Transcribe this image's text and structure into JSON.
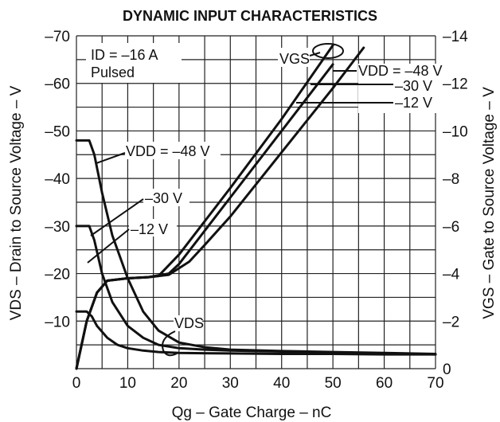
{
  "chart_data": {
    "type": "line",
    "title": "DYNAMIC INPUT CHARACTERISTICS",
    "xlabel": "Qg – Gate Charge – nC",
    "ylabel_left": "VDS – Drain to Source Voltage – V",
    "ylabel_right": "VGS – Gate to Source Voltage – V",
    "xlim": [
      0,
      70
    ],
    "ylim_left": [
      0,
      -70
    ],
    "ylim_right": [
      0,
      -14
    ],
    "grid": true,
    "x_ticks": [
      "0",
      "10",
      "20",
      "30",
      "40",
      "50",
      "60",
      "70"
    ],
    "y_left_ticks": [
      "–70",
      "–60",
      "–50",
      "–40",
      "–30",
      "–20",
      "–10"
    ],
    "y_right_ticks": [
      "–14",
      "–12",
      "–10",
      "–8",
      "–6",
      "–4",
      "–2",
      "0"
    ],
    "conditions": [
      "ID = –16 A",
      "Pulsed"
    ],
    "annotations": {
      "vgs": "VGS",
      "vds": "VDS",
      "vdd_48_right": "VDD = –48 V",
      "vdd_30_right": "–30 V",
      "vdd_12_right": "–12 V",
      "vdd_48_left": "VDD = –48 V",
      "vdd_30_left": "–30 V",
      "vdd_12_left": "–12 V"
    },
    "series": [
      {
        "name": "VDS, VDD = –48 V",
        "axis": "left",
        "x": [
          0,
          2.5,
          3.5,
          5,
          7,
          10,
          13,
          16,
          20,
          25,
          30,
          40,
          50,
          60,
          70
        ],
        "y": [
          -48,
          -48,
          -45,
          -37,
          -28,
          -19,
          -12,
          -8,
          -5.5,
          -4.5,
          -4,
          -3.7,
          -3.5,
          -3.3,
          -3.1
        ]
      },
      {
        "name": "VDS, VDD = –30 V",
        "axis": "left",
        "x": [
          0,
          2.5,
          3.5,
          5,
          7,
          10,
          13,
          16,
          20,
          25,
          30,
          40,
          50,
          60,
          70
        ],
        "y": [
          -30,
          -30,
          -27,
          -20,
          -14,
          -9,
          -6.5,
          -5,
          -4.3,
          -4,
          -3.8,
          -3.6,
          -3.4,
          -3.2,
          -3
        ]
      },
      {
        "name": "VDS, VDD = –12 V",
        "axis": "left",
        "x": [
          0,
          2,
          3,
          4,
          6,
          8,
          10,
          13,
          16,
          20,
          30,
          40,
          50,
          60,
          70
        ],
        "y": [
          -12,
          -12,
          -11,
          -9,
          -6.5,
          -5,
          -4.3,
          -3.8,
          -3.5,
          -3.3,
          -3.2,
          -3.1,
          -3.1,
          -3,
          -3
        ]
      },
      {
        "name": "VGS, VDD = –12 V",
        "axis": "right",
        "x": [
          0,
          2,
          4,
          6,
          10,
          14,
          16,
          20,
          30,
          40,
          50
        ],
        "y": [
          0,
          -2,
          -3.2,
          -3.7,
          -3.8,
          -3.85,
          -3.9,
          -4.8,
          -7.6,
          -10.5,
          -13.6
        ]
      },
      {
        "name": "VGS, VDD = –30 V",
        "axis": "right",
        "x": [
          0,
          2,
          4,
          6,
          10,
          14,
          18,
          20,
          25,
          30,
          40,
          50
        ],
        "y": [
          0,
          -2,
          -3.2,
          -3.7,
          -3.8,
          -3.85,
          -4,
          -4.4,
          -5.8,
          -7.2,
          -10,
          -12.8
        ]
      },
      {
        "name": "VGS, VDD = –48 V",
        "axis": "right",
        "x": [
          0,
          2,
          4,
          6,
          10,
          14,
          18,
          22,
          25,
          30,
          40,
          50,
          56
        ],
        "y": [
          0,
          -2,
          -3.2,
          -3.7,
          -3.8,
          -3.85,
          -3.95,
          -4.5,
          -5.2,
          -6.4,
          -9.1,
          -11.8,
          -13.5
        ]
      }
    ]
  }
}
